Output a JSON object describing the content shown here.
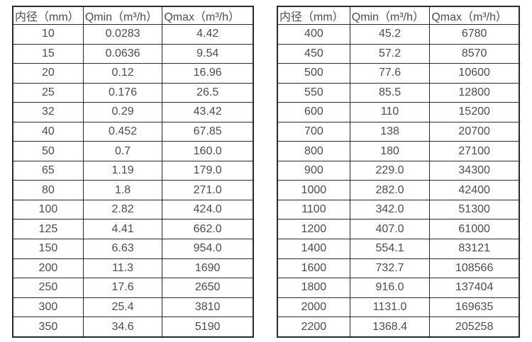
{
  "page": {
    "background": "#ffffff",
    "text_color": "#4d4d4d",
    "border_color": "#2b2b2b"
  },
  "tables": [
    {
      "title": "small-diameter-flow-range",
      "headers": [
        "内径（mm）",
        "Qmin（m³/h）",
        "Qmax（m³/h）"
      ],
      "rows": [
        [
          "10",
          "0.0283",
          "4.42"
        ],
        [
          "15",
          "0.0636",
          "9.54"
        ],
        [
          "20",
          "0.12",
          "16.96"
        ],
        [
          "25",
          "0.176",
          "26.5"
        ],
        [
          "32",
          "0.29",
          "43.42"
        ],
        [
          "40",
          "0.452",
          "67.85"
        ],
        [
          "50",
          "0.7",
          "160.0"
        ],
        [
          "65",
          "1.19",
          "179.0"
        ],
        [
          "80",
          "1.8",
          "271.0"
        ],
        [
          "100",
          "2.82",
          "424.0"
        ],
        [
          "125",
          "4.41",
          "662.0"
        ],
        [
          "150",
          "6.63",
          "954.0"
        ],
        [
          "200",
          "11.3",
          "1690"
        ],
        [
          "250",
          "17.6",
          "2650"
        ],
        [
          "300",
          "25.4",
          "3810"
        ],
        [
          "350",
          "34.6",
          "5190"
        ]
      ]
    },
    {
      "title": "large-diameter-flow-range",
      "headers": [
        "内径（mm）",
        "Qmin（m³/h）",
        "Qmax（m³/h）"
      ],
      "rows": [
        [
          "400",
          "45.2",
          "6780"
        ],
        [
          "450",
          "57.2",
          "8570"
        ],
        [
          "500",
          "77.6",
          "10600"
        ],
        [
          "550",
          "85.5",
          "12800"
        ],
        [
          "600",
          "110",
          "15200"
        ],
        [
          "700",
          "138",
          "20700"
        ],
        [
          "800",
          "180",
          "27100"
        ],
        [
          "900",
          "229.0",
          "34300"
        ],
        [
          "1000",
          "282.0",
          "42400"
        ],
        [
          "1100",
          "342.0",
          "51300"
        ],
        [
          "1200",
          "407.0",
          "61000"
        ],
        [
          "1400",
          "554.1",
          "83121"
        ],
        [
          "1600",
          "732.7",
          "108566"
        ],
        [
          "1800",
          "916.0",
          "137404"
        ],
        [
          "2000",
          "1131.0",
          "169635"
        ],
        [
          "2200",
          "1368.4",
          "205258"
        ]
      ]
    }
  ],
  "chart_data": {
    "type": "table",
    "title": "",
    "columns": [
      "内径（mm）",
      "Qmin（m³/h）",
      "Qmax（m³/h）"
    ],
    "rows": [
      [
        10,
        0.0283,
        4.42
      ],
      [
        15,
        0.0636,
        9.54
      ],
      [
        20,
        0.12,
        16.96
      ],
      [
        25,
        0.176,
        26.5
      ],
      [
        32,
        0.29,
        43.42
      ],
      [
        40,
        0.452,
        67.85
      ],
      [
        50,
        0.7,
        160.0
      ],
      [
        65,
        1.19,
        179.0
      ],
      [
        80,
        1.8,
        271.0
      ],
      [
        100,
        2.82,
        424.0
      ],
      [
        125,
        4.41,
        662.0
      ],
      [
        150,
        6.63,
        954.0
      ],
      [
        200,
        11.3,
        1690
      ],
      [
        250,
        17.6,
        2650
      ],
      [
        300,
        25.4,
        3810
      ],
      [
        350,
        34.6,
        5190
      ],
      [
        400,
        45.2,
        6780
      ],
      [
        450,
        57.2,
        8570
      ],
      [
        500,
        77.6,
        10600
      ],
      [
        550,
        85.5,
        12800
      ],
      [
        600,
        110,
        15200
      ],
      [
        700,
        138,
        20700
      ],
      [
        800,
        180,
        27100
      ],
      [
        900,
        229.0,
        34300
      ],
      [
        1000,
        282.0,
        42400
      ],
      [
        1100,
        342.0,
        51300
      ],
      [
        1200,
        407.0,
        61000
      ],
      [
        1400,
        554.1,
        83121
      ],
      [
        1600,
        732.7,
        108566
      ],
      [
        1800,
        916.0,
        137404
      ],
      [
        2000,
        1131.0,
        169635
      ],
      [
        2200,
        1368.4,
        205258
      ]
    ]
  }
}
